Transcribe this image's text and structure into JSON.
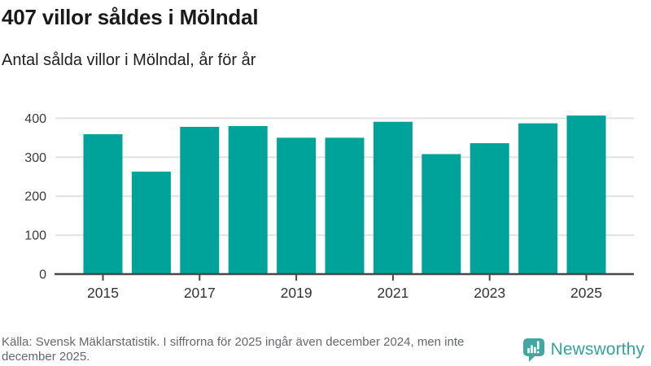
{
  "header": {
    "title": "407 villor såldes i Mölndal",
    "subtitle": "Antal sålda villor i Mölndal, år för år"
  },
  "chart_data": {
    "type": "bar",
    "title": "407 villor såldes i Mölndal",
    "subtitle": "Antal sålda villor i Mölndal, år för år",
    "categories": [
      "2015",
      "2016",
      "2017",
      "2018",
      "2019",
      "2020",
      "2021",
      "2022",
      "2023",
      "2024",
      "2025"
    ],
    "values": [
      359,
      263,
      378,
      380,
      350,
      350,
      391,
      308,
      336,
      387,
      407
    ],
    "xlabel": "",
    "ylabel": "",
    "ylim": [
      0,
      400
    ],
    "yticks": [
      0,
      100,
      200,
      300,
      400
    ],
    "x_tick_labels": [
      "2015",
      "2017",
      "2019",
      "2021",
      "2023",
      "2025"
    ],
    "grid": "horizontal",
    "legend": "none",
    "bar_color": "#00a39a",
    "gridline_color": "#e2e2e2",
    "axis_color": "#484848"
  },
  "footer": {
    "source_note": "Källa: Svensk Mäklarstatistik. I siffrorna för 2025 ingår även december 2024, men inte december 2025.",
    "brand_name": "Newsworthy",
    "brand_color": "#35a39b",
    "logo_icon": "bar-chart-speech-bubble"
  }
}
